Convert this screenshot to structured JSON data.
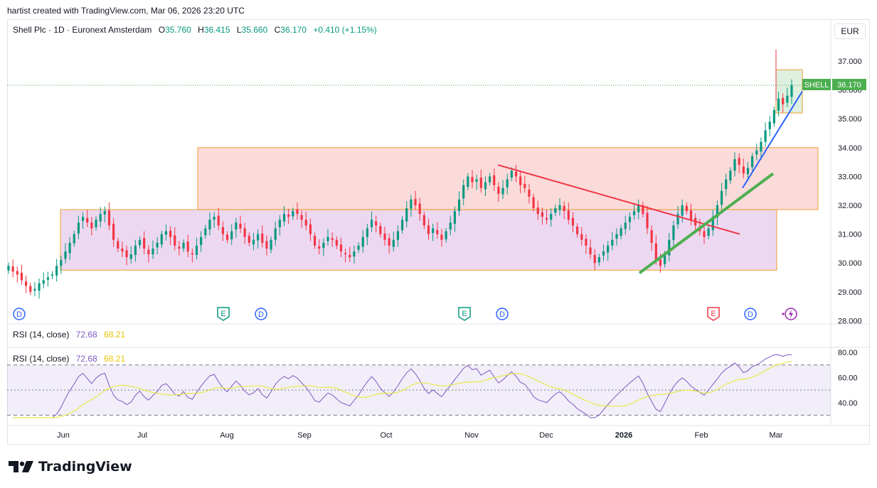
{
  "header": {
    "credit": "hartist created with TradingView.com, Mar 06, 2026 23:20 UTC"
  },
  "legend": {
    "symbol": "Shell Plc · 1D · Euronext Amsterdam",
    "o_label": "O",
    "o": "35.760",
    "h_label": "H",
    "h": "36.415",
    "l_label": "L",
    "l": "35.660",
    "c_label": "C",
    "c": "36.170",
    "change": "+0.410 (+1.15%)"
  },
  "currency": "EUR",
  "price_tag": {
    "symbol": "SHELL",
    "value": "36.170"
  },
  "price_axis": [
    "37.000",
    "36.000",
    "35.000",
    "34.000",
    "33.000",
    "32.000",
    "31.000",
    "30.000",
    "29.000",
    "28.000"
  ],
  "rsi": {
    "title": "RSI (14, close)",
    "value": "72.68",
    "ma_value": "68.21",
    "axis": [
      "80.00",
      "60.00",
      "40.00"
    ]
  },
  "time_axis": [
    "Jun",
    "Jul",
    "Aug",
    "Sep",
    "Oct",
    "Nov",
    "Dec",
    "2026",
    "Feb",
    "Mar"
  ],
  "events": [
    {
      "type": "dividend",
      "label": "D"
    },
    {
      "type": "earnings",
      "label": "E"
    },
    {
      "type": "dividend",
      "label": "D"
    },
    {
      "type": "earnings",
      "label": "E"
    },
    {
      "type": "dividend",
      "label": "D"
    },
    {
      "type": "earnings",
      "label": "E"
    },
    {
      "type": "dividend",
      "label": "D"
    },
    {
      "type": "split-flash",
      "label": ""
    }
  ],
  "brand": {
    "name": "TradingView"
  },
  "colors": {
    "up": "#089981",
    "down": "#f23645",
    "rsi_line": "#7e57c2",
    "rsi_ma": "#e8e84a",
    "box_range": "#e1bee7",
    "box_resistance": "#f8bbbb",
    "price_green": "#4caf50",
    "trend_red": "#f23645",
    "trend_green": "#4caf50",
    "trend_blue": "#2962ff"
  },
  "chart_data": {
    "type": "candlestick",
    "title": "Shell Plc · 1D · Euronext Amsterdam",
    "currency": "EUR",
    "ylim": [
      28.0,
      37.6
    ],
    "last_close": 36.17,
    "closes": [
      29.9,
      29.7,
      29.6,
      29.4,
      29.2,
      29.0,
      29.1,
      29.3,
      29.4,
      29.5,
      29.6,
      29.9,
      30.1,
      30.4,
      30.7,
      31.0,
      31.4,
      31.6,
      31.4,
      31.2,
      31.5,
      31.7,
      31.8,
      31.3,
      30.8,
      30.5,
      30.4,
      30.2,
      30.3,
      30.6,
      30.8,
      30.5,
      30.3,
      30.5,
      30.7,
      31.0,
      31.1,
      30.9,
      30.6,
      30.5,
      30.7,
      30.4,
      30.3,
      30.6,
      30.9,
      31.2,
      31.5,
      31.6,
      31.3,
      31.0,
      30.8,
      31.1,
      31.4,
      31.2,
      30.9,
      30.7,
      30.8,
      31.0,
      30.7,
      30.5,
      30.8,
      31.2,
      31.5,
      31.7,
      31.6,
      31.8,
      31.7,
      31.5,
      31.3,
      31.0,
      30.6,
      30.5,
      30.7,
      30.9,
      30.8,
      30.6,
      30.4,
      30.3,
      30.2,
      30.4,
      30.6,
      30.9,
      31.2,
      31.5,
      31.3,
      31.0,
      30.8,
      30.6,
      30.8,
      31.1,
      31.5,
      31.9,
      32.2,
      32.0,
      31.7,
      31.3,
      31.0,
      31.2,
      31.0,
      30.8,
      31.1,
      31.4,
      31.8,
      32.2,
      32.7,
      33.0,
      32.8,
      32.9,
      32.6,
      32.8,
      33.0,
      32.7,
      32.4,
      32.6,
      32.9,
      33.2,
      33.0,
      32.7,
      32.6,
      32.3,
      31.9,
      31.7,
      31.6,
      31.5,
      31.7,
      31.9,
      32.0,
      31.8,
      31.5,
      31.3,
      31.0,
      30.8,
      30.6,
      30.3,
      30.0,
      30.2,
      30.4,
      30.6,
      30.8,
      31.0,
      31.2,
      31.4,
      31.6,
      31.8,
      32.0,
      31.7,
      31.2,
      30.7,
      30.1,
      29.9,
      30.3,
      30.8,
      31.3,
      31.7,
      32.0,
      31.8,
      31.5,
      31.3,
      31.1,
      30.9,
      31.2,
      31.6,
      32.0,
      32.5,
      32.9,
      33.2,
      33.6,
      33.4,
      33.1,
      33.3,
      33.7,
      33.9,
      34.2,
      34.6,
      34.9,
      35.3,
      35.7,
      35.5,
      35.8,
      36.17
    ],
    "series": [
      {
        "name": "RSI (14, close)",
        "last": 72.68
      },
      {
        "name": "RSI-based MA",
        "last": 68.21
      }
    ],
    "rsi_levels": [
      70,
      50,
      30
    ],
    "rsi_ylim": [
      25,
      85
    ]
  }
}
